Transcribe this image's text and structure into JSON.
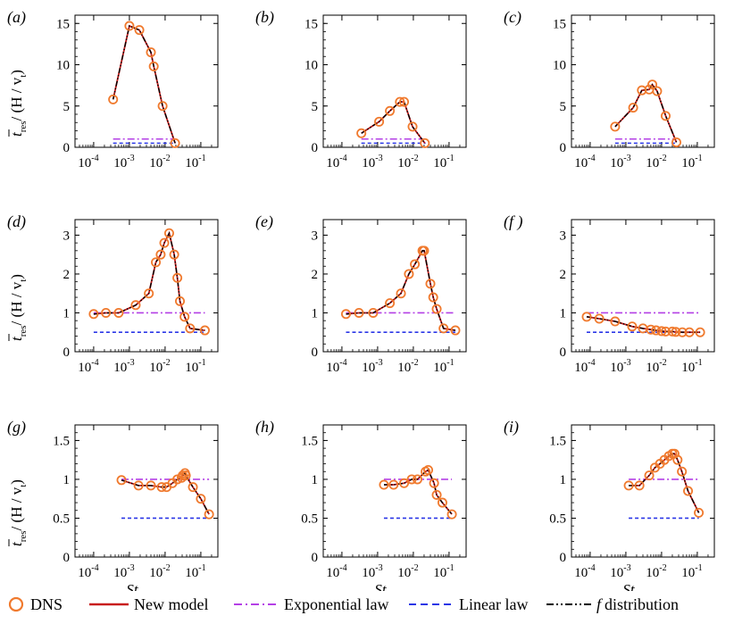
{
  "chart_data": {
    "type": "line",
    "layout": "3x3 grid",
    "colors": {
      "dns": "#f07a2e",
      "new_model": "#c81e1e",
      "exponential": "#b440e6",
      "linear": "#2a36e6",
      "f_dist": "#000000"
    },
    "y_axis_label": {
      "t": "t",
      "sub": "res",
      "rest": "/ (H / v",
      "vsub": "t",
      "close": ")"
    },
    "x_axis_label": "St",
    "x_ticks": [
      {
        "base": "10",
        "exp": "-4",
        "value": 0.0001
      },
      {
        "base": "10",
        "exp": "-3",
        "value": 0.001
      },
      {
        "base": "10",
        "exp": "-2",
        "value": 0.01
      },
      {
        "base": "10",
        "exp": "-1",
        "value": 0.1
      }
    ],
    "xlim": [
      3e-05,
      0.3
    ],
    "legend": [
      {
        "key": "dns",
        "label": "DNS",
        "style": "circle"
      },
      {
        "key": "new_model",
        "label": "New model",
        "style": "solid"
      },
      {
        "key": "exponential",
        "label": "Exponential law",
        "style": "dashdot"
      },
      {
        "key": "linear",
        "label": "Linear law",
        "style": "dash"
      },
      {
        "key": "f_dist",
        "label": "distribution",
        "italic_prefix": "f",
        "style": "dashdotdot"
      }
    ],
    "panels": [
      {
        "label": "(a)",
        "ylim": [
          0,
          16
        ],
        "yticks": [
          0,
          5,
          10,
          15
        ],
        "ytick_labels": [
          "0",
          "5",
          "10",
          "15"
        ],
        "exp": 1.0,
        "lin": 0.5,
        "line_span": [
          0.00035,
          0.02
        ],
        "x": [
          0.00035,
          0.001,
          0.0019,
          0.004,
          0.0048,
          0.0085,
          0.019
        ],
        "y": [
          5.8,
          14.7,
          14.2,
          11.5,
          9.8,
          5.0,
          0.5
        ]
      },
      {
        "label": "(b)",
        "ylim": [
          0,
          16
        ],
        "yticks": [
          0,
          5,
          10,
          15
        ],
        "ytick_labels": [
          "0",
          "5",
          "10",
          "15"
        ],
        "exp": 1.0,
        "lin": 0.5,
        "line_span": [
          0.00035,
          0.022
        ],
        "x": [
          0.00035,
          0.0011,
          0.0022,
          0.0042,
          0.0055,
          0.0095,
          0.021
        ],
        "y": [
          1.7,
          3.1,
          4.4,
          5.5,
          5.5,
          2.5,
          0.5
        ]
      },
      {
        "label": "(c)",
        "ylim": [
          0,
          16
        ],
        "yticks": [
          0,
          5,
          10,
          15
        ],
        "ytick_labels": [
          "0",
          "5",
          "10",
          "15"
        ],
        "exp": 1.0,
        "lin": 0.5,
        "line_span": [
          0.0005,
          0.025
        ],
        "x": [
          0.0005,
          0.0016,
          0.0028,
          0.0045,
          0.0055,
          0.0075,
          0.013,
          0.026
        ],
        "y": [
          2.5,
          4.8,
          6.9,
          7.0,
          7.6,
          6.8,
          3.8,
          0.6
        ]
      },
      {
        "label": "(d)",
        "ylim": [
          0,
          3.4
        ],
        "yticks": [
          0,
          1,
          2,
          3
        ],
        "ytick_labels": [
          "0",
          "1",
          "2",
          "3"
        ],
        "exp": 1.0,
        "lin": 0.5,
        "line_span": [
          0.0001,
          0.13
        ],
        "x": [
          0.0001,
          0.00022,
          0.0005,
          0.0015,
          0.0035,
          0.0055,
          0.0075,
          0.0095,
          0.013,
          0.018,
          0.022,
          0.026,
          0.035,
          0.05,
          0.13
        ],
        "y": [
          0.97,
          1.0,
          1.0,
          1.2,
          1.5,
          2.3,
          2.5,
          2.8,
          3.05,
          2.5,
          1.9,
          1.3,
          0.9,
          0.6,
          0.55
        ]
      },
      {
        "label": "(e)",
        "ylim": [
          0,
          3.4
        ],
        "yticks": [
          0,
          1,
          2,
          3
        ],
        "ytick_labels": [
          "0",
          "1",
          "2",
          "3"
        ],
        "exp": 1.0,
        "lin": 0.5,
        "line_span": [
          0.00013,
          0.15
        ],
        "x": [
          0.00013,
          0.0003,
          0.00075,
          0.0022,
          0.0045,
          0.0075,
          0.011,
          0.018,
          0.02,
          0.03,
          0.036,
          0.045,
          0.07,
          0.15
        ],
        "y": [
          0.97,
          1.0,
          1.0,
          1.25,
          1.5,
          2.0,
          2.25,
          2.6,
          2.6,
          1.75,
          1.4,
          1.1,
          0.6,
          0.55
        ]
      },
      {
        "label": "(f )",
        "ylim": [
          0,
          3.4
        ],
        "yticks": [
          0,
          1,
          2,
          3
        ],
        "ytick_labels": [
          "0",
          "1",
          "2",
          "3"
        ],
        "exp": 1.0,
        "lin": 0.5,
        "line_span": [
          8e-05,
          0.12
        ],
        "x": [
          8e-05,
          0.00018,
          0.0005,
          0.0015,
          0.003,
          0.005,
          0.007,
          0.01,
          0.013,
          0.02,
          0.025,
          0.038,
          0.06,
          0.12
        ],
        "y": [
          0.9,
          0.85,
          0.78,
          0.65,
          0.6,
          0.57,
          0.55,
          0.53,
          0.52,
          0.52,
          0.51,
          0.5,
          0.5,
          0.5
        ]
      },
      {
        "label": "(g)",
        "ylim": [
          0,
          1.7
        ],
        "yticks": [
          0,
          0.5,
          1,
          1.5
        ],
        "ytick_labels": [
          "0",
          "0.5",
          "1",
          "1.5"
        ],
        "exp": 1.0,
        "lin": 0.5,
        "line_span": [
          0.0006,
          0.17
        ],
        "x": [
          0.0006,
          0.0018,
          0.004,
          0.008,
          0.011,
          0.016,
          0.022,
          0.029,
          0.031,
          0.036,
          0.038,
          0.06,
          0.1,
          0.17
        ],
        "y": [
          0.99,
          0.92,
          0.92,
          0.9,
          0.9,
          0.95,
          1.0,
          1.02,
          1.05,
          1.08,
          1.05,
          0.9,
          0.75,
          0.55
        ]
      },
      {
        "label": "(h)",
        "ylim": [
          0,
          1.7
        ],
        "yticks": [
          0,
          0.5,
          1,
          1.5
        ],
        "ytick_labels": [
          "0",
          "0.5",
          "1",
          "1.5"
        ],
        "exp": 1.0,
        "lin": 0.5,
        "line_span": [
          0.0015,
          0.12
        ],
        "x": [
          0.0015,
          0.0028,
          0.0055,
          0.009,
          0.013,
          0.022,
          0.026,
          0.038,
          0.045,
          0.065,
          0.12
        ],
        "y": [
          0.93,
          0.93,
          0.95,
          1.0,
          1.0,
          1.1,
          1.12,
          0.95,
          0.8,
          0.7,
          0.55
        ]
      },
      {
        "label": "(i)",
        "ylim": [
          0,
          1.7
        ],
        "yticks": [
          0,
          0.5,
          1,
          1.5
        ],
        "ytick_labels": [
          "0",
          "0.5",
          "1",
          "1.5"
        ],
        "exp": 1.0,
        "lin": 0.5,
        "line_span": [
          0.0012,
          0.11
        ],
        "x": [
          0.0012,
          0.0024,
          0.0045,
          0.0065,
          0.009,
          0.012,
          0.016,
          0.02,
          0.023,
          0.028,
          0.037,
          0.055,
          0.11
        ],
        "y": [
          0.92,
          0.92,
          1.05,
          1.15,
          1.2,
          1.25,
          1.3,
          1.33,
          1.33,
          1.25,
          1.1,
          0.85,
          0.57
        ]
      }
    ]
  }
}
